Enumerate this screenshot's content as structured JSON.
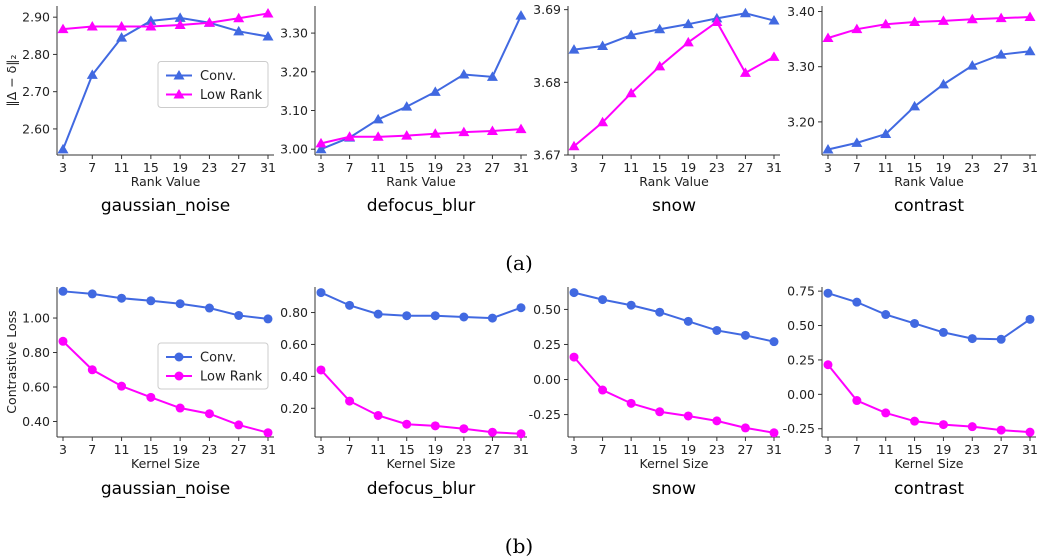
{
  "figure": {
    "caption_a": "(a)",
    "caption_b": "(b)",
    "colors": {
      "conv": "#4169e1",
      "lowrank": "#ff00ff"
    }
  },
  "chart_data": [
    {
      "type": "line",
      "title": "gaussian_noise",
      "xlabel": "Rank Value",
      "ylabel": "‖Δ − δ‖₂",
      "x": [
        3,
        7,
        11,
        15,
        19,
        23,
        27,
        31
      ],
      "ylim": [
        2.53,
        2.93
      ],
      "yticks": [
        2.6,
        2.7,
        2.8,
        2.9
      ],
      "tick_decimals": 2,
      "marker": "triangle",
      "legend": "right-middle",
      "series": [
        {
          "name": "Conv.",
          "values": [
            2.545,
            2.745,
            2.845,
            2.89,
            2.898,
            2.885,
            2.862,
            2.848
          ]
        },
        {
          "name": "Low Rank",
          "values": [
            2.868,
            2.875,
            2.875,
            2.875,
            2.879,
            2.885,
            2.897,
            2.91
          ]
        }
      ]
    },
    {
      "type": "line",
      "title": "defocus_blur",
      "xlabel": "Rank Value",
      "ylabel": "",
      "x": [
        3,
        7,
        11,
        15,
        19,
        23,
        27,
        31
      ],
      "ylim": [
        2.985,
        3.37
      ],
      "yticks": [
        3.0,
        3.1,
        3.2,
        3.3
      ],
      "tick_decimals": 2,
      "marker": "triangle",
      "series": [
        {
          "name": "",
          "values": [
            3.0,
            3.03,
            3.077,
            3.11,
            3.148,
            3.193,
            3.187,
            3.345
          ]
        },
        {
          "name": "",
          "values": [
            3.015,
            3.032,
            3.032,
            3.035,
            3.04,
            3.044,
            3.047,
            3.052
          ]
        }
      ]
    },
    {
      "type": "line",
      "title": "snow",
      "xlabel": "Rank Value",
      "ylabel": "",
      "x": [
        3,
        7,
        11,
        15,
        19,
        23,
        27,
        31
      ],
      "ylim": [
        3.67,
        3.6905
      ],
      "yticks": [
        3.67,
        3.68,
        3.69
      ],
      "tick_decimals": 2,
      "marker": "triangle",
      "series": [
        {
          "name": "",
          "values": [
            3.6845,
            3.685,
            3.6865,
            3.6873,
            3.688,
            3.6888,
            3.6895,
            3.6885
          ]
        },
        {
          "name": "",
          "values": [
            3.6712,
            3.6745,
            3.6785,
            3.6822,
            3.6855,
            3.6883,
            3.6813,
            3.6835
          ]
        }
      ]
    },
    {
      "type": "line",
      "title": "contrast",
      "xlabel": "Rank Value",
      "ylabel": "",
      "x": [
        3,
        7,
        11,
        15,
        19,
        23,
        27,
        31
      ],
      "ylim": [
        3.14,
        3.41
      ],
      "yticks": [
        3.2,
        3.3,
        3.4
      ],
      "tick_decimals": 2,
      "marker": "triangle",
      "series": [
        {
          "name": "",
          "values": [
            3.15,
            3.162,
            3.178,
            3.228,
            3.268,
            3.302,
            3.322,
            3.328
          ]
        },
        {
          "name": "",
          "values": [
            3.352,
            3.368,
            3.377,
            3.381,
            3.383,
            3.386,
            3.388,
            3.39
          ]
        }
      ]
    },
    {
      "type": "line",
      "title": "gaussian_noise",
      "xlabel": "Kernel Size",
      "ylabel": "Contrastive Loss",
      "x": [
        3,
        7,
        11,
        15,
        19,
        23,
        27,
        31
      ],
      "ylim": [
        0.31,
        1.18
      ],
      "yticks": [
        0.4,
        0.6,
        0.8,
        1.0
      ],
      "tick_decimals": 2,
      "marker": "circle",
      "legend": "right-middle",
      "series": [
        {
          "name": "Conv.",
          "values": [
            1.155,
            1.14,
            1.115,
            1.1,
            1.083,
            1.058,
            1.015,
            0.995
          ]
        },
        {
          "name": "Low Rank",
          "values": [
            0.865,
            0.7,
            0.605,
            0.54,
            0.478,
            0.445,
            0.38,
            0.335
          ]
        }
      ]
    },
    {
      "type": "line",
      "title": "defocus_blur",
      "xlabel": "Kernel Size",
      "ylabel": "",
      "x": [
        3,
        7,
        11,
        15,
        19,
        23,
        27,
        31
      ],
      "ylim": [
        0.02,
        0.96
      ],
      "yticks": [
        0.2,
        0.4,
        0.6,
        0.8
      ],
      "tick_decimals": 2,
      "marker": "circle",
      "series": [
        {
          "name": "",
          "values": [
            0.925,
            0.845,
            0.79,
            0.78,
            0.78,
            0.772,
            0.765,
            0.83
          ]
        },
        {
          "name": "",
          "values": [
            0.44,
            0.245,
            0.155,
            0.1,
            0.09,
            0.072,
            0.05,
            0.04
          ]
        }
      ]
    },
    {
      "type": "line",
      "title": "snow",
      "xlabel": "Kernel Size",
      "ylabel": "",
      "x": [
        3,
        7,
        11,
        15,
        19,
        23,
        27,
        31
      ],
      "ylim": [
        -0.41,
        0.66
      ],
      "yticks": [
        -0.25,
        0.0,
        0.25,
        0.5
      ],
      "tick_decimals": 2,
      "marker": "circle",
      "series": [
        {
          "name": "",
          "values": [
            0.62,
            0.57,
            0.53,
            0.48,
            0.415,
            0.35,
            0.315,
            0.27
          ]
        },
        {
          "name": "",
          "values": [
            0.16,
            -0.075,
            -0.17,
            -0.23,
            -0.26,
            -0.295,
            -0.345,
            -0.38
          ]
        }
      ]
    },
    {
      "type": "line",
      "title": "contrast",
      "xlabel": "Kernel Size",
      "ylabel": "",
      "x": [
        3,
        7,
        11,
        15,
        19,
        23,
        27,
        31
      ],
      "ylim": [
        -0.31,
        0.78
      ],
      "yticks": [
        -0.25,
        0.0,
        0.25,
        0.5,
        0.75
      ],
      "tick_decimals": 2,
      "marker": "circle",
      "series": [
        {
          "name": "",
          "values": [
            0.735,
            0.67,
            0.58,
            0.515,
            0.45,
            0.405,
            0.4,
            0.545
          ]
        },
        {
          "name": "",
          "values": [
            0.215,
            -0.045,
            -0.135,
            -0.195,
            -0.22,
            -0.235,
            -0.26,
            -0.275
          ]
        }
      ]
    }
  ]
}
